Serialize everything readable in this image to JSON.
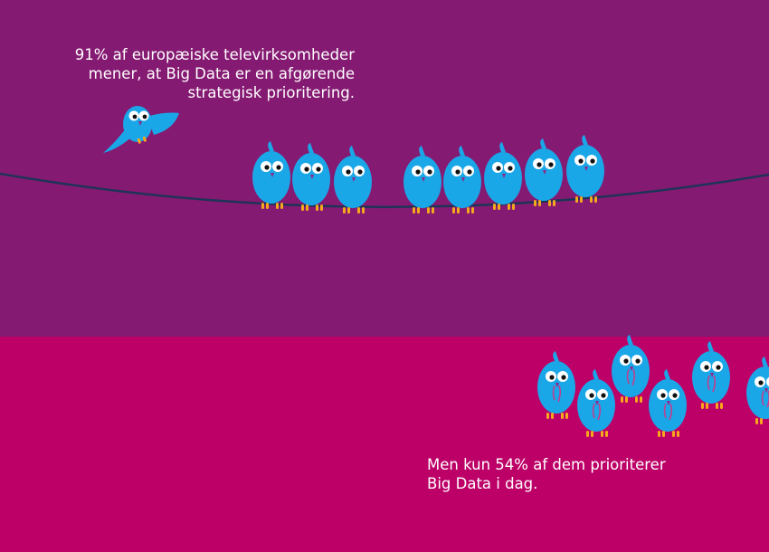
{
  "infographic": {
    "top_caption": [
      "91% af europæiske televirksomheder",
      "mener, at Big Data er en afgørende",
      "strategisk prioritering."
    ],
    "bottom_caption": [
      "Men kun 54% af dem prioriterer",
      "Big Data i dag."
    ]
  },
  "colors": {
    "top_background": "#851a72",
    "bottom_background": "#bd0067",
    "bird_body": "#1aa7e8",
    "bird_feet": "#f6a81c",
    "wire": "#1f3358"
  },
  "icons": [
    "bird-icon",
    "flying-bird-icon",
    "wire"
  ]
}
